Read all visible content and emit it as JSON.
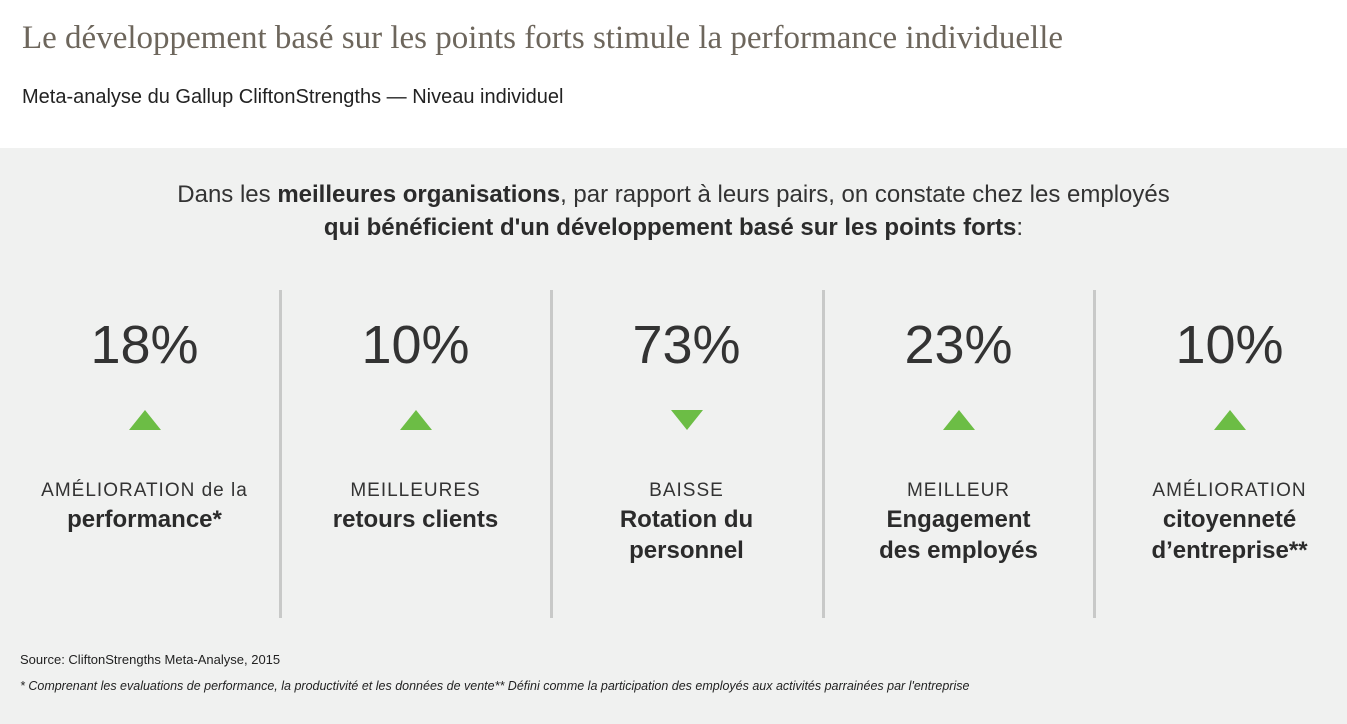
{
  "title": "Le développement basé sur les points forts stimule la performance individuelle",
  "subtitle": "Meta-analyse du Gallup CliftonStrengths — Niveau individuel",
  "intro": {
    "p1": "Dans les ",
    "b1": "meilleures organisations",
    "p2": ", par rapport à leurs pairs, on constate chez les employés ",
    "b2": "qui bénéficient d'un développement basé sur les points forts",
    "p3": ":"
  },
  "stats": [
    {
      "value": "18%",
      "direction": "up",
      "cap": "AMÉLIORATION de la",
      "bold": "performance*"
    },
    {
      "value": "10%",
      "direction": "up",
      "cap": "MEILLEURES",
      "bold": "retours clients"
    },
    {
      "value": "73%",
      "direction": "down",
      "cap": "BAISSE",
      "bold": "Rotation du personnel"
    },
    {
      "value": "23%",
      "direction": "up",
      "cap": "MEILLEUR",
      "bold": "Engagement des employés"
    },
    {
      "value": "10%",
      "direction": "up",
      "cap": "AMÉLIORATION",
      "bold": "citoyenneté d’entreprise**"
    }
  ],
  "source": "Source: CliftonStrengths Meta-Analyse, 2015",
  "footnote": "* Comprenant les evaluations de performance, la productivité et les données de vente** Défini comme la participation des employés aux activités parrainées par l'entreprise",
  "colors": {
    "accent": "#6cbd45",
    "panel": "#f0f1f0"
  }
}
